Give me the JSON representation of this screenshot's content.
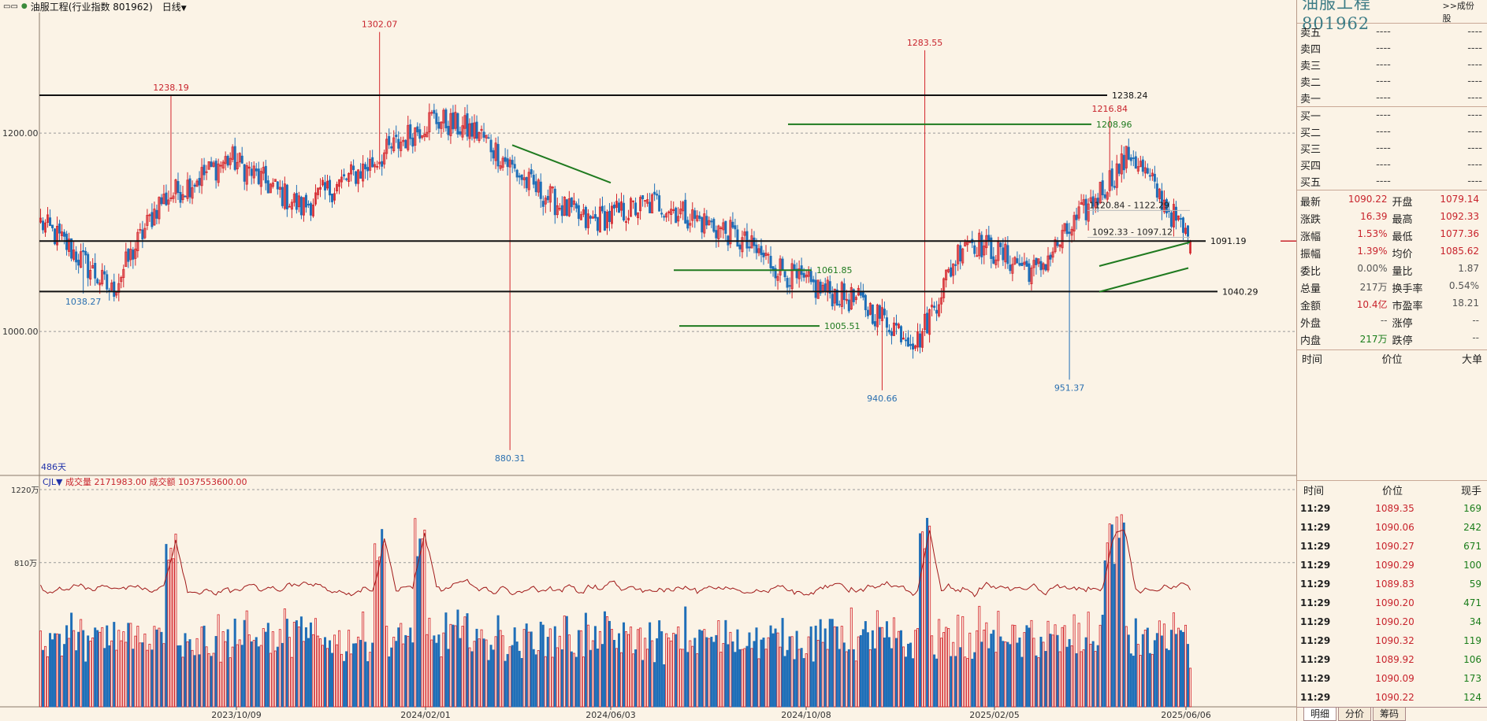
{
  "header": {
    "menu_icon": "double-dash-icon",
    "title": "油服工程(行业指数  801962)",
    "period": "日线"
  },
  "chart": {
    "bar_count_label": "486天",
    "price_axis_labels": [
      "1200.00",
      "1000.00"
    ],
    "annotations": [
      {
        "label": "1302.07",
        "type": "high"
      },
      {
        "label": "1238.19",
        "type": "high"
      },
      {
        "label": "1283.55",
        "type": "high"
      },
      {
        "label": "1216.84",
        "type": "high"
      },
      {
        "label": "1038.27",
        "type": "low"
      },
      {
        "label": "880.31",
        "type": "low"
      },
      {
        "label": "940.66",
        "type": "low"
      },
      {
        "label": "951.37",
        "type": "low"
      }
    ],
    "levels": [
      {
        "label": "1238.24",
        "price": 1238.24,
        "color": "#111111"
      },
      {
        "label": "1208.96",
        "price": 1208.96,
        "color": "#1f7a1f"
      },
      {
        "label": "1091.19",
        "price": 1091.19,
        "color": "#111111"
      },
      {
        "label": "1061.85",
        "price": 1061.85,
        "color": "#1f7a1f"
      },
      {
        "label": "1040.29",
        "price": 1040.29,
        "color": "#111111"
      },
      {
        "label": "1005.51",
        "price": 1005.51,
        "color": "#1f7a1f"
      }
    ],
    "range_labels": [
      "1120.84 - 1122.29",
      "1092.33 - 1097.12"
    ],
    "x_axis_labels": [
      "2023/10/09",
      "2024/02/01",
      "2024/06/03",
      "2024/10/08",
      "2025/02/05",
      "2025/06/06"
    ],
    "volume_indicator": {
      "name": "CJL",
      "vol_label": "成交量",
      "vol_value": "2171983.00",
      "amt_label": "成交额",
      "amt_value": "1037553600.00",
      "axis_labels": [
        "1220万",
        "810万"
      ]
    },
    "colors": {
      "up": "#d4242b",
      "down": "#1f6fb8",
      "ma": "#a01818",
      "bg": "#fbf3e6"
    }
  },
  "chart_data": {
    "type": "candlestick",
    "title": "油服工程(行业指数 801962) 日线",
    "period_days": 486,
    "x_tick_labels": [
      "2023/10/09",
      "2024/02/01",
      "2024/06/03",
      "2024/10/08",
      "2025/02/05",
      "2025/06/06"
    ],
    "y_tick_labels": [
      "1200.00",
      "1000.00"
    ],
    "ylim": [
      858,
      1320
    ],
    "approximate_close_path": [
      {
        "bar": 0,
        "close": 1110
      },
      {
        "bar": 12,
        "close": 1085
      },
      {
        "bar": 30,
        "close": 1040
      },
      {
        "bar": 50,
        "close": 1130
      },
      {
        "bar": 80,
        "close": 1175
      },
      {
        "bar": 110,
        "close": 1125
      },
      {
        "bar": 140,
        "close": 1170
      },
      {
        "bar": 165,
        "close": 1215
      },
      {
        "bar": 185,
        "close": 1200
      },
      {
        "bar": 205,
        "close": 1150
      },
      {
        "bar": 230,
        "close": 1110
      },
      {
        "bar": 260,
        "close": 1130
      },
      {
        "bar": 290,
        "close": 1100
      },
      {
        "bar": 320,
        "close": 1050
      },
      {
        "bar": 345,
        "close": 1030
      },
      {
        "bar": 370,
        "close": 990
      },
      {
        "bar": 390,
        "close": 1095
      },
      {
        "bar": 420,
        "close": 1060
      },
      {
        "bar": 460,
        "close": 1180
      },
      {
        "bar": 485,
        "close": 1090.22
      }
    ],
    "marked_highs": [
      1302.07,
      1238.19,
      1283.55,
      1216.84
    ],
    "marked_lows": [
      1038.27,
      880.31,
      940.66,
      951.37
    ],
    "volume_axis_labels": [
      "1220万",
      "810万"
    ],
    "last_volume": 2171983.0,
    "last_amount": 1037553600.0
  },
  "panel": {
    "title": "油服工程  801962",
    "link": ">>成份股",
    "asks": [
      {
        "label": "卖五",
        "price": "----",
        "vol": "----"
      },
      {
        "label": "卖四",
        "price": "----",
        "vol": "----"
      },
      {
        "label": "卖三",
        "price": "----",
        "vol": "----"
      },
      {
        "label": "卖二",
        "price": "----",
        "vol": "----"
      },
      {
        "label": "卖一",
        "price": "----",
        "vol": "----"
      }
    ],
    "bids": [
      {
        "label": "买一",
        "price": "----",
        "vol": "----"
      },
      {
        "label": "买二",
        "price": "----",
        "vol": "----"
      },
      {
        "label": "买三",
        "price": "----",
        "vol": "----"
      },
      {
        "label": "买四",
        "price": "----",
        "vol": "----"
      },
      {
        "label": "买五",
        "price": "----",
        "vol": "----"
      }
    ],
    "quote": [
      [
        {
          "k": "最新",
          "v": "1090.22",
          "c": "red"
        },
        {
          "k": "开盘",
          "v": "1079.14",
          "c": "red"
        }
      ],
      [
        {
          "k": "涨跌",
          "v": "16.39",
          "c": "red"
        },
        {
          "k": "最高",
          "v": "1092.33",
          "c": "red"
        }
      ],
      [
        {
          "k": "涨幅",
          "v": "1.53%",
          "c": "red"
        },
        {
          "k": "最低",
          "v": "1077.36",
          "c": "red"
        }
      ],
      [
        {
          "k": "振幅",
          "v": "1.39%",
          "c": "red"
        },
        {
          "k": "均价",
          "v": "1085.62",
          "c": "red"
        }
      ],
      [
        {
          "k": "委比",
          "v": "0.00%",
          "c": "grey"
        },
        {
          "k": "量比",
          "v": "1.87",
          "c": "grey"
        }
      ],
      [
        {
          "k": "总量",
          "v": "217万",
          "c": "grey"
        },
        {
          "k": "换手率",
          "v": "0.54%",
          "c": "grey"
        }
      ],
      [
        {
          "k": "金额",
          "v": "10.4亿",
          "c": "red"
        },
        {
          "k": "市盈率",
          "v": "18.21",
          "c": "grey"
        }
      ],
      [
        {
          "k": "外盘",
          "v": "--",
          "c": "grey"
        },
        {
          "k": "涨停",
          "v": "--",
          "c": "grey"
        }
      ],
      [
        {
          "k": "内盘",
          "v": "217万",
          "c": "green"
        },
        {
          "k": "跌停",
          "v": "--",
          "c": "grey"
        }
      ]
    ],
    "big_order_headers": [
      "时间",
      "价位",
      "大单"
    ],
    "tick_headers": [
      "时间",
      "价位",
      "现手"
    ],
    "ticks": [
      {
        "time": "11:29",
        "price": "1089.35",
        "hand": "169"
      },
      {
        "time": "11:29",
        "price": "1090.06",
        "hand": "242"
      },
      {
        "time": "11:29",
        "price": "1090.27",
        "hand": "671"
      },
      {
        "time": "11:29",
        "price": "1090.29",
        "hand": "100"
      },
      {
        "time": "11:29",
        "price": "1089.83",
        "hand": "59"
      },
      {
        "time": "11:29",
        "price": "1090.20",
        "hand": "471"
      },
      {
        "time": "11:29",
        "price": "1090.20",
        "hand": "34"
      },
      {
        "time": "11:29",
        "price": "1090.32",
        "hand": "119"
      },
      {
        "time": "11:29",
        "price": "1089.92",
        "hand": "106"
      },
      {
        "time": "11:29",
        "price": "1090.09",
        "hand": "173"
      },
      {
        "time": "11:29",
        "price": "1090.22",
        "hand": "124"
      }
    ],
    "tabs": [
      "明细",
      "分价",
      "筹码"
    ]
  }
}
